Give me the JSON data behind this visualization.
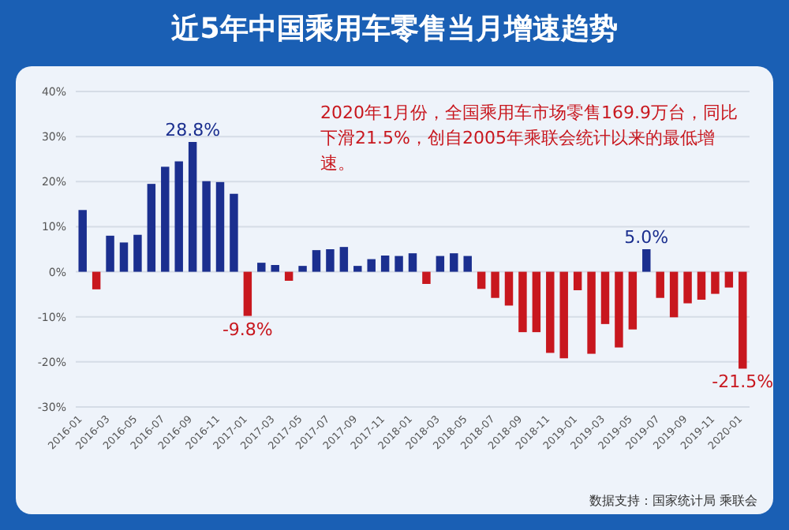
{
  "chart_data": {
    "type": "bar",
    "title": "近5年中国乘用车零售当月增速趋势",
    "categories": [
      "2016-01",
      null,
      "2016-03",
      null,
      "2016-05",
      null,
      "2016-07",
      null,
      "2016-09",
      null,
      "2016-11",
      null,
      "2017-01",
      null,
      "2017-03",
      null,
      "2017-05",
      null,
      "2017-07",
      null,
      "2017-09",
      null,
      "2017-11",
      null,
      "2018-01",
      null,
      "2018-03",
      null,
      "2018-05",
      null,
      "2018-07",
      null,
      "2018-09",
      null,
      "2018-11",
      null,
      "2019-01",
      null,
      "2019-03",
      null,
      "2019-05",
      null,
      "2019-07",
      null,
      "2019-09",
      null,
      "2019-11",
      null,
      "2020-01"
    ],
    "values": [
      13.7,
      -3.9,
      8.0,
      6.5,
      8.2,
      19.5,
      23.3,
      24.5,
      28.8,
      20.1,
      19.9,
      17.3,
      -9.8,
      2.0,
      1.5,
      -2.0,
      1.3,
      4.8,
      5.0,
      5.5,
      1.3,
      2.8,
      3.6,
      3.5,
      4.1,
      -2.7,
      3.5,
      4.1,
      3.5,
      -3.8,
      -5.8,
      -7.5,
      -13.4,
      -13.4,
      -18.0,
      -19.2,
      -4.1,
      -18.2,
      -11.6,
      -16.8,
      -12.8,
      5.0,
      -5.8,
      -10.1,
      -7.0,
      -6.2,
      -4.9,
      -3.5,
      -21.5
    ],
    "colors": [
      "#1b2f8f",
      "#c8171e",
      "#1b2f8f",
      "#1b2f8f",
      "#1b2f8f",
      "#1b2f8f",
      "#1b2f8f",
      "#1b2f8f",
      "#1b2f8f",
      "#1b2f8f",
      "#1b2f8f",
      "#1b2f8f",
      "#c8171e",
      "#1b2f8f",
      "#1b2f8f",
      "#c8171e",
      "#1b2f8f",
      "#1b2f8f",
      "#1b2f8f",
      "#1b2f8f",
      "#1b2f8f",
      "#1b2f8f",
      "#1b2f8f",
      "#1b2f8f",
      "#1b2f8f",
      "#c8171e",
      "#1b2f8f",
      "#1b2f8f",
      "#1b2f8f",
      "#c8171e",
      "#c8171e",
      "#c8171e",
      "#c8171e",
      "#c8171e",
      "#c8171e",
      "#c8171e",
      "#c8171e",
      "#c8171e",
      "#c8171e",
      "#c8171e",
      "#c8171e",
      "#1b2f8f",
      "#c8171e",
      "#c8171e",
      "#c8171e",
      "#c8171e",
      "#c8171e",
      "#c8171e",
      "#c8171e"
    ],
    "value_labels": [
      null,
      null,
      null,
      null,
      null,
      null,
      null,
      null,
      "28.8%",
      null,
      null,
      null,
      "-9.8%",
      null,
      null,
      null,
      null,
      null,
      null,
      null,
      null,
      null,
      null,
      null,
      null,
      null,
      null,
      null,
      null,
      null,
      null,
      null,
      null,
      null,
      null,
      null,
      null,
      null,
      null,
      null,
      null,
      "5.0%",
      null,
      null,
      null,
      null,
      null,
      null,
      "-21.5%"
    ],
    "ylim": [
      -30,
      40
    ],
    "yticks": [
      {
        "value": -30,
        "label": "-30%"
      },
      {
        "value": -20,
        "label": "-20%"
      },
      {
        "value": -10,
        "label": "-10%"
      },
      {
        "value": 0,
        "label": "0%"
      },
      {
        "value": 10,
        "label": "10%"
      },
      {
        "value": 20,
        "label": "20%"
      },
      {
        "value": 30,
        "label": "30%"
      },
      {
        "value": 40,
        "label": "40%"
      }
    ],
    "grid": "y",
    "annotations": [
      "2020年1月份，全国乘用车市场零售169.9万台，同比下滑21.5%，创自2005年乘联会统计以来的最低增速。",
      "数据支持：国家统计局 乘联会"
    ]
  }
}
